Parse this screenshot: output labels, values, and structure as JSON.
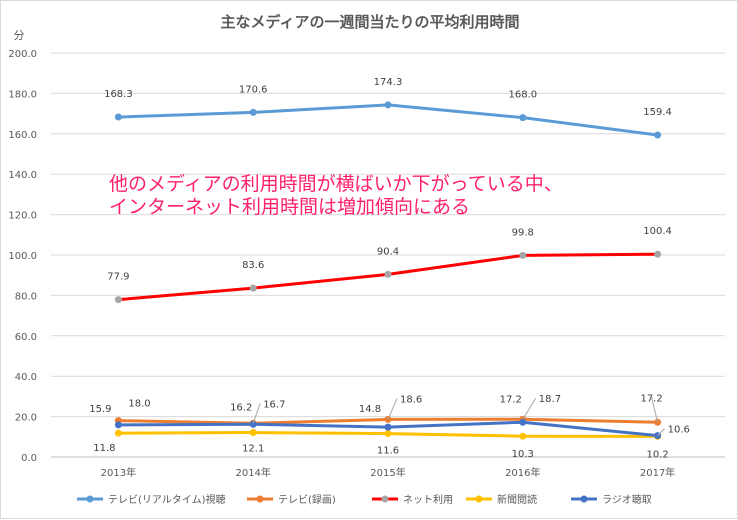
{
  "chart_data": {
    "type": "line",
    "title": "主なメディアの一週間当たりの平均利用時間",
    "ylabel": "分",
    "xlabel": "",
    "ylim": [
      0,
      200
    ],
    "y_ticks": [
      "0.0",
      "20.0",
      "40.0",
      "60.0",
      "80.0",
      "100.0",
      "120.0",
      "140.0",
      "160.0",
      "180.0",
      "200.0"
    ],
    "categories": [
      "2013年",
      "2014年",
      "2015年",
      "2016年",
      "2017年"
    ],
    "grid": true,
    "legend_position": "bottom",
    "series": [
      {
        "name": "テレビ(リアルタイム)視聴",
        "color": "#5b9bd5",
        "values": [
          168.3,
          170.6,
          174.3,
          168.0,
          159.4
        ],
        "labels": [
          "168.3",
          "170.6",
          "174.3",
          "168.0",
          "159.4"
        ]
      },
      {
        "name": "テレビ(録画)",
        "color": "#ed7d31",
        "values": [
          18.0,
          16.7,
          18.6,
          18.7,
          17.2
        ],
        "labels": [
          "18.0",
          "16.7",
          "18.6",
          "18.7",
          "17.2"
        ]
      },
      {
        "name": "ネット利用",
        "color": "#ff0000",
        "marker_color": "#a5a5a5",
        "values": [
          77.9,
          83.6,
          90.4,
          99.8,
          100.4
        ],
        "labels": [
          "77.9",
          "83.6",
          "90.4",
          "99.8",
          "100.4"
        ]
      },
      {
        "name": "新聞閲読",
        "color": "#ffc000",
        "values": [
          11.8,
          12.1,
          11.6,
          10.3,
          10.2
        ],
        "labels": [
          "11.8",
          "12.1",
          "11.6",
          "10.3",
          "10.2"
        ]
      },
      {
        "name": "ラジオ聴取",
        "color": "#4472c4",
        "values": [
          15.9,
          16.2,
          14.8,
          17.2,
          10.6
        ],
        "labels": [
          "15.9",
          "16.2",
          "14.8",
          "17.2",
          "10.6"
        ]
      }
    ],
    "annotation": [
      "他のメディアの利用時間が横ばいか下がっている中、",
      "インターネット利用時間は増加傾向にある"
    ]
  }
}
